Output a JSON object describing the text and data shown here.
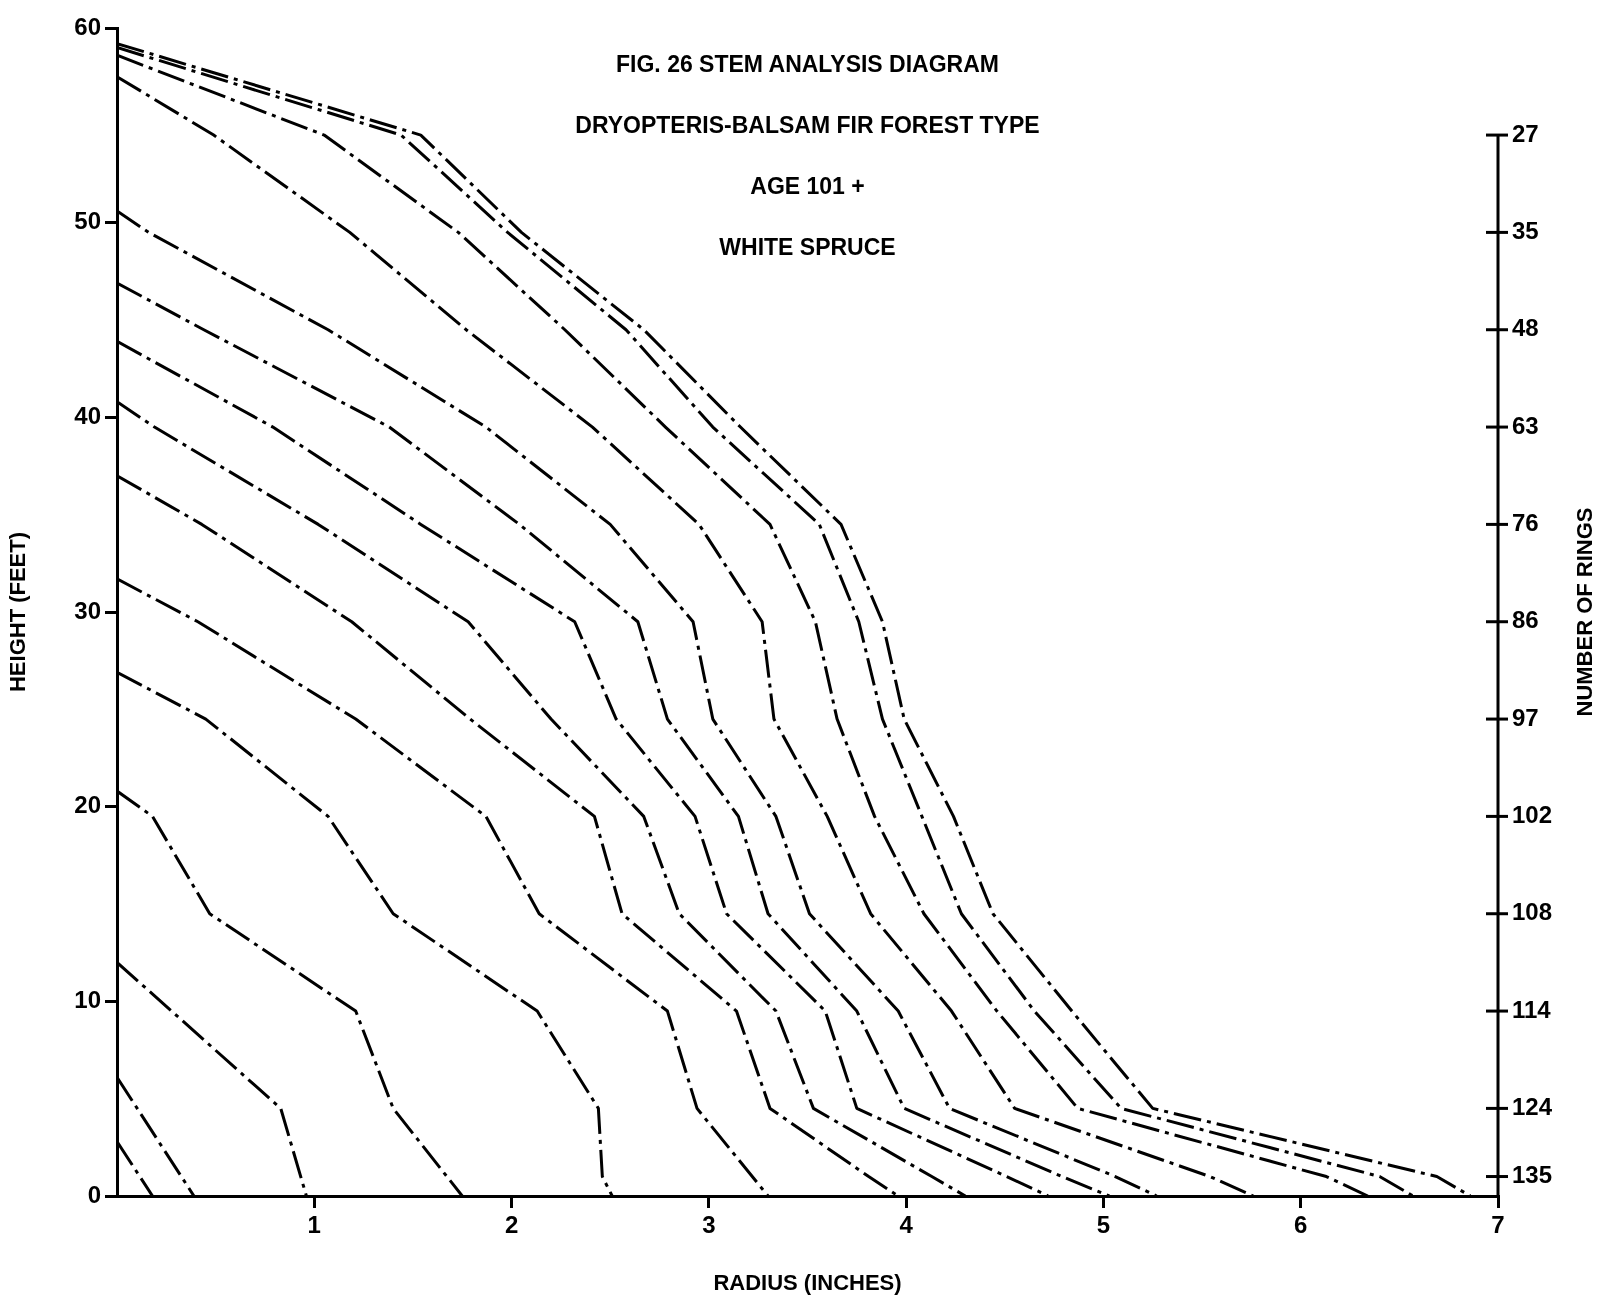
{
  "chart_data": {
    "type": "line",
    "title": "FIG. 26 STEM ANALYSIS DIAGRAM",
    "subtitle": "DRYOPTERIS-BALSAM FIR FOREST TYPE",
    "annotations": [
      "AGE 101 +",
      "WHITE SPRUCE",
      "27",
      "35",
      "48",
      "63",
      "76",
      "86",
      "97",
      "102",
      "108",
      "114",
      "124",
      "135"
    ],
    "xlabel": "RADIUS (INCHES)",
    "ylabel": "HEIGHT (FEET)",
    "y2label": "NUMBER OF RINGS",
    "xlim": [
      0,
      7
    ],
    "xticks": [
      1,
      2,
      3,
      4,
      5,
      6,
      7
    ],
    "ylim": [
      0,
      60
    ],
    "yticks": [
      0,
      10,
      20,
      30,
      40,
      50,
      60
    ],
    "grid": false,
    "legend": false,
    "marker": "none",
    "line_style": "dashed",
    "series": [
      {
        "color": "#000000",
        "x": [
          0,
          0.18
        ],
        "values": [
          2.8,
          0
        ]
      },
      {
        "color": "#000000",
        "x": [
          0,
          0.39
        ],
        "values": [
          6.1,
          0
        ]
      },
      {
        "color": "#000000",
        "x": [
          0,
          0.83,
          0.96
        ],
        "values": [
          12.0,
          4.5,
          0
        ]
      },
      {
        "color": "#000000",
        "x": [
          0,
          0.18,
          0.47,
          1.21,
          1.4,
          1.75
        ],
        "values": [
          20.8,
          19.5,
          14.5,
          9.5,
          4.5,
          0
        ]
      },
      {
        "color": "#000000",
        "x": [
          0,
          0.45,
          1.07,
          1.4,
          2.13,
          2.44,
          2.46,
          2.51
        ],
        "values": [
          26.9,
          24.5,
          19.5,
          14.5,
          9.5,
          4.5,
          1,
          0
        ]
      },
      {
        "color": "#000000",
        "x": [
          0,
          0.41,
          1.21,
          1.87,
          2.14,
          2.79,
          2.94,
          3.22,
          3.3
        ],
        "values": [
          31.7,
          29.5,
          24.5,
          19.5,
          14.5,
          9.5,
          4.5,
          1,
          0
        ]
      },
      {
        "color": "#000000",
        "x": [
          0,
          0.43,
          1.19,
          1.79,
          2.42,
          2.56,
          3.14,
          3.31,
          3.81,
          3.96
        ],
        "values": [
          37.0,
          34.5,
          29.5,
          24.5,
          19.5,
          14.5,
          9.5,
          4.5,
          1,
          0
        ]
      },
      {
        "color": "#000000",
        "x": [
          0,
          0.19,
          1.02,
          1.78,
          2.2,
          2.67,
          2.85,
          3.34,
          3.53,
          4.13,
          4.3
        ],
        "values": [
          40.8,
          39.5,
          34.5,
          29.5,
          24.5,
          19.5,
          14.5,
          9.5,
          4.5,
          1,
          0
        ]
      },
      {
        "color": "#000000",
        "x": [
          0,
          0.79,
          1.54,
          2.32,
          2.53,
          2.93,
          3.09,
          3.59,
          3.75,
          4.51,
          4.72
        ],
        "values": [
          43.9,
          39.5,
          34.5,
          29.5,
          24.5,
          19.5,
          14.5,
          9.5,
          4.5,
          1,
          0
        ]
      },
      {
        "color": "#000000",
        "x": [
          0,
          0.44,
          1.38,
          2.04,
          2.64,
          2.79,
          3.15,
          3.3,
          3.75,
          3.99,
          4.79,
          5.03
        ],
        "values": [
          46.9,
          44.5,
          39.5,
          34.5,
          29.5,
          24.5,
          19.5,
          14.5,
          9.5,
          4.5,
          1,
          0
        ]
      },
      {
        "color": "#000000",
        "x": [
          0,
          0.16,
          1.07,
          1.87,
          2.5,
          2.92,
          3.02,
          3.34,
          3.51,
          3.96,
          4.22,
          5.06,
          5.27
        ],
        "values": [
          50.6,
          49.5,
          44.5,
          39.5,
          34.5,
          29.5,
          24.5,
          19.5,
          14.5,
          9.5,
          4.5,
          1,
          0
        ]
      },
      {
        "color": "#000000",
        "x": [
          0,
          0.49,
          1.18,
          1.77,
          2.41,
          2.95,
          3.27,
          3.33,
          3.6,
          3.82,
          4.23,
          4.55,
          5.54,
          5.76
        ],
        "values": [
          57.5,
          54.5,
          49.5,
          44.5,
          39.5,
          34.5,
          29.5,
          24.5,
          19.5,
          14.5,
          9.5,
          4.5,
          1,
          0
        ]
      },
      {
        "color": "#000000",
        "x": [
          0,
          1.05,
          1.73,
          2.27,
          2.78,
          3.31,
          3.54,
          3.65,
          3.84,
          4.09,
          4.46,
          4.87,
          6.13,
          6.34
        ],
        "values": [
          58.6,
          54.5,
          49.5,
          44.5,
          39.5,
          34.5,
          29.5,
          24.5,
          19.5,
          14.5,
          9.5,
          4.5,
          1,
          0
        ]
      },
      {
        "color": "#000000",
        "x": [
          0,
          1.44,
          1.98,
          2.58,
          3.02,
          3.56,
          3.76,
          3.88,
          4.08,
          4.28,
          4.65,
          5.09,
          6.4,
          6.57
        ],
        "values": [
          59.0,
          54.5,
          49.5,
          44.5,
          39.5,
          34.5,
          29.5,
          24.5,
          19.5,
          14.5,
          9.5,
          4.5,
          1,
          0
        ]
      },
      {
        "color": "#000000",
        "x": [
          0,
          1.54,
          2.05,
          2.67,
          3.16,
          3.67,
          3.88,
          3.99,
          4.24,
          4.44,
          4.84,
          5.25,
          6.69,
          6.86
        ],
        "values": [
          59.2,
          54.5,
          49.5,
          44.5,
          39.5,
          34.5,
          29.5,
          24.5,
          19.5,
          14.5,
          9.5,
          4.5,
          1,
          0
        ]
      }
    ]
  }
}
